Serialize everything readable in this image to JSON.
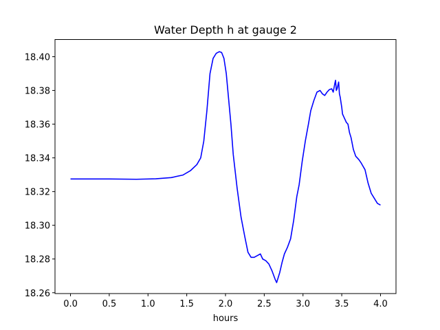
{
  "chart_data": {
    "type": "line",
    "title": "Water Depth h at gauge 2",
    "xlabel": "hours",
    "ylabel": "",
    "xlim": [
      -0.2,
      4.2
    ],
    "ylim": [
      18.2595,
      18.4102
    ],
    "grid": false,
    "x_ticks": [
      0.0,
      0.5,
      1.0,
      1.5,
      2.0,
      2.5,
      3.0,
      3.5,
      4.0
    ],
    "x_tick_labels": [
      "0.0",
      "0.5",
      "1.0",
      "1.5",
      "2.0",
      "2.5",
      "3.0",
      "3.5",
      "4.0"
    ],
    "y_ticks": [
      18.26,
      18.28,
      18.3,
      18.32,
      18.34,
      18.36,
      18.38,
      18.4
    ],
    "y_tick_labels": [
      "18.26",
      "18.28",
      "18.30",
      "18.32",
      "18.34",
      "18.36",
      "18.38",
      "18.40"
    ],
    "series": [
      {
        "color": "#0000ff",
        "x": [
          0.0,
          0.5,
          0.85,
          1.1,
          1.3,
          1.45,
          1.55,
          1.63,
          1.68,
          1.72,
          1.76,
          1.8,
          1.84,
          1.88,
          1.92,
          1.95,
          1.98,
          2.01,
          2.04,
          2.07,
          2.1,
          2.15,
          2.2,
          2.25,
          2.29,
          2.33,
          2.37,
          2.41,
          2.45,
          2.48,
          2.52,
          2.56,
          2.6,
          2.64,
          2.66,
          2.7,
          2.73,
          2.76,
          2.8,
          2.84,
          2.88,
          2.92,
          2.95,
          2.99,
          3.03,
          3.07,
          3.1,
          3.14,
          3.18,
          3.22,
          3.25,
          3.28,
          3.31,
          3.34,
          3.37,
          3.39,
          3.41,
          3.42,
          3.43,
          3.44,
          3.45,
          3.46,
          3.47,
          3.48,
          3.49,
          3.5,
          3.51,
          3.53,
          3.56,
          3.58,
          3.6,
          3.62,
          3.65,
          3.68,
          3.72,
          3.75,
          3.8,
          3.84,
          3.88,
          3.92,
          3.96,
          4.0
        ],
        "y": [
          18.3275,
          18.3275,
          18.3273,
          18.3276,
          18.3283,
          18.3298,
          18.3325,
          18.336,
          18.34,
          18.35,
          18.368,
          18.39,
          18.399,
          18.402,
          18.403,
          18.4025,
          18.399,
          18.39,
          18.375,
          18.36,
          18.342,
          18.322,
          18.305,
          18.293,
          18.284,
          18.281,
          18.281,
          18.282,
          18.283,
          18.28,
          18.279,
          18.277,
          18.273,
          18.268,
          18.266,
          18.272,
          18.278,
          18.283,
          18.287,
          18.292,
          18.303,
          18.317,
          18.324,
          18.338,
          18.35,
          18.36,
          18.368,
          18.374,
          18.379,
          18.38,
          18.378,
          18.377,
          18.379,
          18.3805,
          18.381,
          18.379,
          18.384,
          18.386,
          18.38,
          18.381,
          18.383,
          18.385,
          18.378,
          18.376,
          18.373,
          18.37,
          18.366,
          18.364,
          18.361,
          18.36,
          18.355,
          18.352,
          18.345,
          18.341,
          18.339,
          18.337,
          18.333,
          18.325,
          18.319,
          18.316,
          18.313,
          18.312
        ]
      }
    ]
  }
}
